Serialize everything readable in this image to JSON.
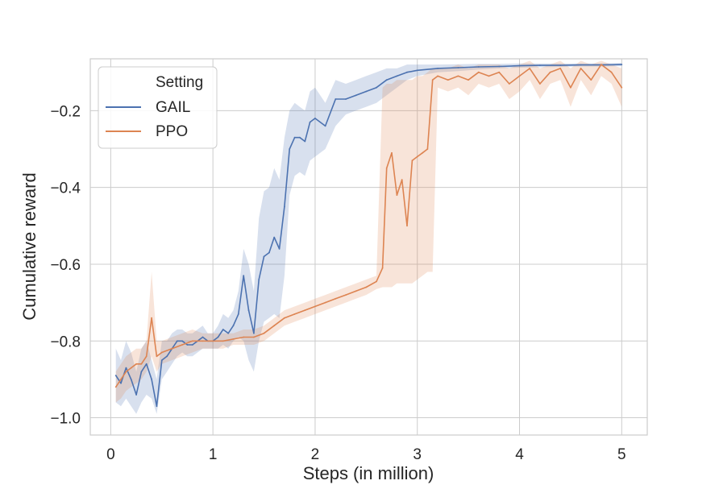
{
  "chart_data": {
    "type": "line",
    "title": "",
    "xlabel": "Steps (in million)",
    "ylabel": "Cumulative reward",
    "xlim": [
      -0.2,
      5.25
    ],
    "ylim": [
      -1.045,
      -0.065
    ],
    "xticks": [
      0,
      1,
      2,
      3,
      4,
      5
    ],
    "xtick_labels": [
      "0",
      "1",
      "2",
      "3",
      "4",
      "5"
    ],
    "yticks": [
      -1.0,
      -0.8,
      -0.6,
      -0.4,
      -0.2
    ],
    "ytick_labels": [
      "−1.0",
      "−0.8",
      "−0.6",
      "−0.4",
      "−0.2"
    ],
    "grid": true,
    "legend": {
      "title": "Setting",
      "placement": "upper-left"
    },
    "series": [
      {
        "name": "GAIL",
        "color": "#4c72b0",
        "x": [
          0.05,
          0.1,
          0.15,
          0.2,
          0.25,
          0.3,
          0.35,
          0.4,
          0.45,
          0.5,
          0.55,
          0.6,
          0.65,
          0.7,
          0.75,
          0.8,
          0.85,
          0.9,
          0.95,
          1.0,
          1.05,
          1.1,
          1.15,
          1.2,
          1.25,
          1.3,
          1.35,
          1.4,
          1.45,
          1.5,
          1.55,
          1.6,
          1.65,
          1.7,
          1.75,
          1.8,
          1.85,
          1.9,
          1.95,
          2.0,
          2.1,
          2.2,
          2.3,
          2.4,
          2.5,
          2.6,
          2.7,
          2.8,
          2.9,
          3.0,
          3.2,
          3.4,
          3.6,
          3.8,
          4.0,
          4.2,
          4.4,
          4.6,
          4.8,
          5.0
        ],
        "y": [
          -0.89,
          -0.91,
          -0.87,
          -0.9,
          -0.94,
          -0.88,
          -0.86,
          -0.9,
          -0.97,
          -0.85,
          -0.84,
          -0.82,
          -0.8,
          -0.8,
          -0.81,
          -0.81,
          -0.8,
          -0.79,
          -0.8,
          -0.8,
          -0.79,
          -0.77,
          -0.78,
          -0.76,
          -0.73,
          -0.63,
          -0.72,
          -0.78,
          -0.64,
          -0.58,
          -0.57,
          -0.53,
          -0.56,
          -0.45,
          -0.3,
          -0.27,
          -0.27,
          -0.28,
          -0.23,
          -0.22,
          -0.24,
          -0.17,
          -0.17,
          -0.16,
          -0.15,
          -0.14,
          -0.12,
          -0.11,
          -0.1,
          -0.095,
          -0.09,
          -0.088,
          -0.086,
          -0.085,
          -0.083,
          -0.082,
          -0.082,
          -0.081,
          -0.081,
          -0.08
        ],
        "ci_low": [
          -0.96,
          -0.97,
          -0.95,
          -0.97,
          -0.99,
          -0.96,
          -0.94,
          -0.95,
          -0.99,
          -0.9,
          -0.88,
          -0.86,
          -0.84,
          -0.83,
          -0.84,
          -0.84,
          -0.83,
          -0.82,
          -0.82,
          -0.82,
          -0.82,
          -0.81,
          -0.82,
          -0.8,
          -0.79,
          -0.8,
          -0.85,
          -0.88,
          -0.8,
          -0.75,
          -0.74,
          -0.73,
          -0.74,
          -0.63,
          -0.42,
          -0.37,
          -0.36,
          -0.37,
          -0.33,
          -0.32,
          -0.3,
          -0.24,
          -0.21,
          -0.2,
          -0.19,
          -0.18,
          -0.16,
          -0.14,
          -0.12,
          -0.11,
          -0.1,
          -0.097,
          -0.093,
          -0.09,
          -0.088,
          -0.087,
          -0.086,
          -0.085,
          -0.085,
          -0.084
        ],
        "ci_high": [
          -0.82,
          -0.85,
          -0.8,
          -0.83,
          -0.88,
          -0.82,
          -0.8,
          -0.85,
          -0.9,
          -0.8,
          -0.8,
          -0.78,
          -0.77,
          -0.77,
          -0.78,
          -0.78,
          -0.77,
          -0.76,
          -0.78,
          -0.78,
          -0.76,
          -0.73,
          -0.74,
          -0.72,
          -0.67,
          -0.56,
          -0.6,
          -0.67,
          -0.48,
          -0.41,
          -0.4,
          -0.35,
          -0.38,
          -0.27,
          -0.2,
          -0.18,
          -0.19,
          -0.2,
          -0.15,
          -0.14,
          -0.18,
          -0.12,
          -0.13,
          -0.12,
          -0.11,
          -0.1,
          -0.09,
          -0.09,
          -0.08,
          -0.08,
          -0.08,
          -0.079,
          -0.078,
          -0.078,
          -0.077,
          -0.077,
          -0.077,
          -0.077,
          -0.077,
          -0.076
        ]
      },
      {
        "name": "PPO",
        "color": "#dd8452",
        "x": [
          0.05,
          0.1,
          0.15,
          0.2,
          0.25,
          0.3,
          0.35,
          0.4,
          0.45,
          0.5,
          0.6,
          0.7,
          0.8,
          0.9,
          1.0,
          1.1,
          1.2,
          1.3,
          1.4,
          1.5,
          1.6,
          1.7,
          1.8,
          1.9,
          2.0,
          2.1,
          2.2,
          2.3,
          2.4,
          2.5,
          2.6,
          2.66,
          2.7,
          2.75,
          2.8,
          2.85,
          2.9,
          2.95,
          3.0,
          3.05,
          3.1,
          3.15,
          3.2,
          3.3,
          3.4,
          3.5,
          3.6,
          3.7,
          3.8,
          3.9,
          4.0,
          4.1,
          4.2,
          4.3,
          4.4,
          4.5,
          4.6,
          4.7,
          4.8,
          4.9,
          5.0
        ],
        "y": [
          -0.92,
          -0.9,
          -0.88,
          -0.87,
          -0.86,
          -0.86,
          -0.84,
          -0.74,
          -0.84,
          -0.83,
          -0.82,
          -0.81,
          -0.8,
          -0.8,
          -0.8,
          -0.8,
          -0.795,
          -0.79,
          -0.79,
          -0.78,
          -0.76,
          -0.74,
          -0.73,
          -0.72,
          -0.71,
          -0.7,
          -0.69,
          -0.68,
          -0.67,
          -0.66,
          -0.645,
          -0.61,
          -0.35,
          -0.31,
          -0.42,
          -0.38,
          -0.5,
          -0.33,
          -0.32,
          -0.31,
          -0.3,
          -0.12,
          -0.11,
          -0.12,
          -0.11,
          -0.12,
          -0.1,
          -0.11,
          -0.1,
          -0.13,
          -0.11,
          -0.09,
          -0.13,
          -0.1,
          -0.09,
          -0.14,
          -0.09,
          -0.12,
          -0.08,
          -0.1,
          -0.14
        ],
        "ci_low": [
          -0.96,
          -0.95,
          -0.93,
          -0.92,
          -0.91,
          -0.9,
          -0.88,
          -0.84,
          -0.88,
          -0.86,
          -0.85,
          -0.84,
          -0.83,
          -0.82,
          -0.82,
          -0.82,
          -0.81,
          -0.81,
          -0.81,
          -0.8,
          -0.78,
          -0.76,
          -0.75,
          -0.74,
          -0.73,
          -0.72,
          -0.71,
          -0.7,
          -0.69,
          -0.68,
          -0.665,
          -0.66,
          -0.66,
          -0.66,
          -0.65,
          -0.65,
          -0.65,
          -0.65,
          -0.64,
          -0.63,
          -0.62,
          -0.62,
          -0.14,
          -0.15,
          -0.14,
          -0.16,
          -0.13,
          -0.14,
          -0.13,
          -0.17,
          -0.15,
          -0.12,
          -0.17,
          -0.13,
          -0.12,
          -0.19,
          -0.12,
          -0.16,
          -0.11,
          -0.13,
          -0.19
        ],
        "ci_high": [
          -0.88,
          -0.86,
          -0.84,
          -0.83,
          -0.82,
          -0.82,
          -0.8,
          -0.62,
          -0.8,
          -0.8,
          -0.79,
          -0.78,
          -0.77,
          -0.78,
          -0.78,
          -0.78,
          -0.78,
          -0.77,
          -0.77,
          -0.76,
          -0.74,
          -0.72,
          -0.71,
          -0.7,
          -0.69,
          -0.68,
          -0.67,
          -0.66,
          -0.65,
          -0.64,
          -0.63,
          -0.14,
          -0.13,
          -0.13,
          -0.12,
          -0.12,
          -0.12,
          -0.12,
          -0.11,
          -0.11,
          -0.1,
          -0.09,
          -0.09,
          -0.09,
          -0.08,
          -0.09,
          -0.08,
          -0.08,
          -0.08,
          -0.09,
          -0.08,
          -0.07,
          -0.09,
          -0.08,
          -0.07,
          -0.09,
          -0.07,
          -0.08,
          -0.07,
          -0.08,
          -0.09
        ]
      }
    ]
  }
}
